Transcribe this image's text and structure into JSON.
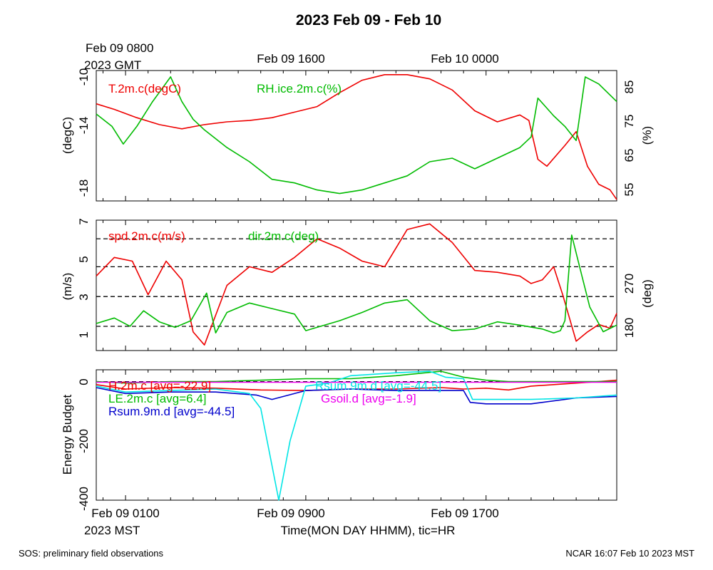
{
  "title": "2023 Feb 09 - Feb 10",
  "top_axis": {
    "first_label_line1": "Feb 09 0800",
    "first_label_line2": "2023 GMT",
    "labels": [
      "Feb 09 1600",
      "Feb 10 0000"
    ]
  },
  "bottom_axis": {
    "labels": [
      "Feb 09 0100",
      "Feb 09 0900",
      "Feb 09 1700"
    ],
    "first_label_line2": "2023 MST",
    "xlabel": "Time(MON DAY HHMM), tic=HR"
  },
  "footer": {
    "left": "SOS: preliminary field observations",
    "right": "NCAR 16:07 Feb 10 2023 MST"
  },
  "colors": {
    "red": "#ee0000",
    "green": "#00bb00",
    "blue": "#0000cc",
    "cyan": "#00e5e5",
    "magenta": "#ee00ee",
    "black": "#000000"
  },
  "chart_data": [
    {
      "type": "line",
      "panel": "temperature-humidity",
      "x_unit": "hours since Feb 09 0100 MST",
      "xlim": [
        -1.3,
        21.8
      ],
      "left_axis": {
        "label": "(degC)",
        "ticks": [
          "-10",
          "-14",
          "-18"
        ],
        "ylim": [
          -19.0,
          -9.6
        ]
      },
      "right_axis": {
        "label": "(%)",
        "ticks": [
          "85",
          "75",
          "65",
          "55"
        ],
        "ylim": [
          51.9,
          88.8
        ]
      },
      "series": [
        {
          "name": "T.2m.c(degC)",
          "axis": "left",
          "color": "red",
          "x": [
            -1.3,
            -0.5,
            0.5,
            1.5,
            2.5,
            3.5,
            4.5,
            5.5,
            6.5,
            7.5,
            8.5,
            9.5,
            10.5,
            11.5,
            12.5,
            13.5,
            14.5,
            15.5,
            16.5,
            17.5,
            17.9,
            18.3,
            18.7,
            19.5,
            20.0,
            20.5,
            21.0,
            21.5,
            21.8
          ],
          "y": [
            -12.0,
            -12.4,
            -13.0,
            -13.5,
            -13.8,
            -13.5,
            -13.3,
            -13.2,
            -13.0,
            -12.6,
            -12.2,
            -11.2,
            -10.3,
            -9.9,
            -9.9,
            -10.2,
            -11.0,
            -12.5,
            -13.3,
            -12.8,
            -13.2,
            -16.0,
            -16.5,
            -15.0,
            -14.0,
            -16.5,
            -17.8,
            -18.2,
            -18.9
          ]
        },
        {
          "name": "RH.ice.2m.c(%)",
          "axis": "right",
          "color": "green",
          "x": [
            -1.3,
            -0.6,
            -0.1,
            0.5,
            1.2,
            2.0,
            2.5,
            3.0,
            3.5,
            4.5,
            5.5,
            6.5,
            7.5,
            8.5,
            9.5,
            10.5,
            11.5,
            12.5,
            13.5,
            14.5,
            15.5,
            16.5,
            17.5,
            18.0,
            18.3,
            19.0,
            19.5,
            20.0,
            20.4,
            21.0,
            21.8
          ],
          "y": [
            76.5,
            73.0,
            68.0,
            73.0,
            80.0,
            87.0,
            80.0,
            75.0,
            72.0,
            67.0,
            63.0,
            58.0,
            57.0,
            55.0,
            54.0,
            55.0,
            57.0,
            59.0,
            63.0,
            64.0,
            61.0,
            64.0,
            67.0,
            70.0,
            81.0,
            76.0,
            73.0,
            69.0,
            87.0,
            85.0,
            80.0
          ]
        }
      ]
    },
    {
      "type": "line",
      "panel": "wind",
      "x_unit": "hours since Feb 09 0100 MST",
      "xlim": [
        -1.3,
        21.8
      ],
      "left_axis": {
        "label": "(m/s)",
        "ticks": [
          "7",
          "5",
          "3",
          "1"
        ],
        "ylim": [
          0.0,
          7.0
        ]
      },
      "right_axis": {
        "label": "(deg)",
        "ticks": [
          "270",
          "180"
        ],
        "ylim": [
          146.0,
          382.0
        ]
      },
      "reference_lines_left": [
        1.3,
        2.9,
        4.5,
        6.0
      ],
      "series": [
        {
          "name": "spd.2m.c(m/s)",
          "axis": "left",
          "color": "red",
          "x": [
            -1.3,
            -0.5,
            0.3,
            1.0,
            1.8,
            2.5,
            3.0,
            3.5,
            4.5,
            5.5,
            6.5,
            7.5,
            8.5,
            9.5,
            10.5,
            11.5,
            12.5,
            13.5,
            14.5,
            15.5,
            16.5,
            17.5,
            18.0,
            18.5,
            19.0,
            19.4,
            20.0,
            20.5,
            21.0,
            21.5,
            21.8
          ],
          "y": [
            4.0,
            5.0,
            4.8,
            3.0,
            4.8,
            3.8,
            1.0,
            0.3,
            3.5,
            4.5,
            4.2,
            5.0,
            6.0,
            5.5,
            4.8,
            4.5,
            6.5,
            6.8,
            5.8,
            4.3,
            4.2,
            4.0,
            3.6,
            3.8,
            4.5,
            3.0,
            0.5,
            1.0,
            1.4,
            1.2,
            2.0
          ]
        },
        {
          "name": "dir.2m.c(deg)",
          "axis": "right",
          "color": "green",
          "x": [
            -1.3,
            -0.5,
            0.2,
            0.8,
            1.5,
            2.2,
            2.9,
            3.6,
            4.0,
            4.5,
            5.5,
            6.5,
            7.5,
            8.0,
            8.5,
            9.5,
            10.5,
            11.5,
            12.5,
            13.5,
            14.5,
            15.5,
            16.5,
            17.5,
            18.5,
            19.0,
            19.3,
            19.5,
            19.8,
            20.2,
            20.6,
            21.2,
            21.8
          ],
          "y": [
            195.0,
            205.0,
            190.0,
            218.0,
            198.0,
            188.0,
            200.0,
            250.0,
            178.0,
            215.0,
            232.0,
            222.0,
            212.0,
            182.0,
            188.0,
            200.0,
            215.0,
            232.0,
            238.0,
            200.0,
            182.0,
            185.0,
            198.0,
            192.0,
            185.0,
            178.0,
            182.0,
            200.0,
            355.0,
            290.0,
            225.0,
            180.0,
            192.0
          ]
        }
      ]
    },
    {
      "type": "line",
      "panel": "energy-budget",
      "x_unit": "hours since Feb 09 0100 MST",
      "xlim": [
        -1.3,
        21.8
      ],
      "left_axis": {
        "label": "Energy Budget",
        "ticks": [
          "0",
          "-200",
          "-400"
        ],
        "ylim": [
          -400.0,
          40.0
        ]
      },
      "reference_lines_left": [
        0
      ],
      "series": [
        {
          "name": "H.2m.c",
          "legend": "H.2m.c [avg=-22.9]",
          "color": "red",
          "x": [
            -1.3,
            0.0,
            2.0,
            4.0,
            6.0,
            8.0,
            10.0,
            12.0,
            14.0,
            15.0,
            16.0,
            17.0,
            18.0,
            19.0,
            20.0,
            21.0,
            21.8
          ],
          "y": [
            -10.0,
            -25.0,
            -20.0,
            -22.0,
            -28.0,
            -30.0,
            -25.0,
            -25.0,
            -20.0,
            -25.0,
            -22.0,
            -28.0,
            -15.0,
            -10.0,
            -5.0,
            0.0,
            5.0
          ]
        },
        {
          "name": "LE.2m.c",
          "legend": "LE.2m.c [avg=6.4]",
          "color": "green",
          "x": [
            -1.3,
            0.0,
            2.0,
            4.0,
            6.0,
            8.0,
            10.0,
            12.0,
            14.0,
            15.0,
            16.0,
            17.0,
            18.0,
            19.0,
            20.0,
            21.0,
            21.8
          ],
          "y": [
            0.0,
            -5.0,
            0.0,
            0.0,
            5.0,
            10.0,
            10.0,
            20.0,
            35.0,
            15.0,
            5.0,
            0.0,
            0.0,
            0.0,
            0.0,
            0.0,
            0.0
          ]
        },
        {
          "name": "Rsum.9m.d",
          "legend": "Rsum.9m.d [avg=-44.5]",
          "color": "blue",
          "x": [
            -1.3,
            0.0,
            2.0,
            4.0,
            5.8,
            6.5,
            8.0,
            10.0,
            12.0,
            14.0,
            15.0,
            15.3,
            16.0,
            18.0,
            20.0,
            21.8
          ],
          "y": [
            -20.0,
            -40.0,
            -35.0,
            -35.0,
            -45.0,
            -60.0,
            -30.0,
            -25.0,
            -30.0,
            -30.0,
            -30.0,
            -70.0,
            -75.0,
            -75.0,
            -55.0,
            -50.0
          ]
        },
        {
          "name": "Rsum.9m.d",
          "legend": "Rsum.9m.d [avg=-44.5]",
          "color": "cyan",
          "x": [
            -1.3,
            0.0,
            2.0,
            4.0,
            5.5,
            6.0,
            6.8,
            7.3,
            8.0,
            9.0,
            10.0,
            12.0,
            13.5,
            14.2,
            15.0,
            15.4,
            16.0,
            18.0,
            20.0,
            21.8
          ],
          "y": [
            -15.0,
            -35.0,
            -30.0,
            -25.0,
            -40.0,
            -90.0,
            -400.0,
            -200.0,
            -15.0,
            -5.0,
            20.0,
            30.0,
            35.0,
            15.0,
            10.0,
            -60.0,
            -60.0,
            -60.0,
            -55.0,
            -45.0
          ]
        },
        {
          "name": "Gsoil.d",
          "legend": "Gsoil.d [avg=-1.9]",
          "color": "magenta",
          "x": [
            -1.3,
            21.8
          ],
          "y": [
            -2.0,
            -2.0
          ]
        }
      ]
    }
  ]
}
